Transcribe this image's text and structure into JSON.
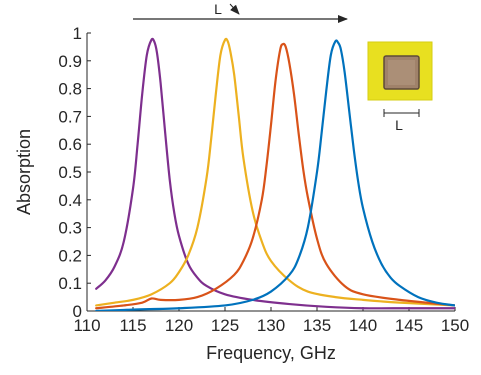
{
  "chart_data": {
    "type": "line",
    "xlabel": "Frequency, GHz",
    "ylabel": "Absorption",
    "xlim": [
      110,
      150
    ],
    "ylim": [
      0,
      1
    ],
    "x_ticks": [
      110,
      115,
      120,
      125,
      130,
      135,
      140,
      145,
      150
    ],
    "y_ticks": [
      0,
      0.1,
      0.2,
      0.3,
      0.4,
      0.5,
      0.6,
      0.7,
      0.8,
      0.9,
      1
    ],
    "y_tick_labels": [
      "0",
      "0.1",
      "0.2",
      "0.3",
      "0.4",
      "0.5",
      "0.6",
      "0.7",
      "0.8",
      "0.9",
      "1"
    ],
    "grid": false,
    "legend": "none",
    "series": [
      {
        "color": "#7E2F8E",
        "x": [
          111,
          112,
          113,
          114,
          115,
          115.5,
          116,
          116.5,
          117,
          117.3,
          117.6,
          118,
          118.5,
          119,
          119.5,
          120,
          121,
          122,
          123,
          125,
          128,
          132,
          136,
          140,
          145,
          150
        ],
        "y": [
          0.08,
          0.11,
          0.16,
          0.25,
          0.44,
          0.6,
          0.78,
          0.92,
          0.975,
          0.97,
          0.93,
          0.82,
          0.64,
          0.47,
          0.35,
          0.27,
          0.17,
          0.12,
          0.09,
          0.06,
          0.04,
          0.025,
          0.015,
          0.01,
          0.01,
          0.01
        ]
      },
      {
        "color": "#EDB120",
        "x": [
          111,
          113,
          115,
          117,
          119,
          120,
          121,
          122,
          123,
          123.5,
          124,
          124.5,
          125,
          125.3,
          125.6,
          126,
          126.5,
          127,
          128,
          129,
          130,
          132,
          134,
          137,
          140,
          144,
          150
        ],
        "y": [
          0.02,
          0.03,
          0.04,
          0.06,
          0.1,
          0.14,
          0.2,
          0.3,
          0.48,
          0.62,
          0.78,
          0.92,
          0.975,
          0.97,
          0.93,
          0.85,
          0.7,
          0.55,
          0.36,
          0.25,
          0.18,
          0.11,
          0.07,
          0.05,
          0.04,
          0.03,
          0.02
        ]
      },
      {
        "color": "#D95319",
        "x": [
          111,
          114,
          116,
          117,
          118,
          120,
          122,
          124,
          126,
          127,
          128,
          129,
          129.5,
          130,
          130.5,
          131,
          131.3,
          131.6,
          132,
          132.5,
          133,
          133.5,
          134,
          135,
          136,
          138,
          140,
          144,
          150
        ],
        "y": [
          0.01,
          0.02,
          0.03,
          0.045,
          0.04,
          0.04,
          0.05,
          0.08,
          0.13,
          0.18,
          0.26,
          0.4,
          0.52,
          0.67,
          0.83,
          0.94,
          0.96,
          0.95,
          0.89,
          0.78,
          0.64,
          0.51,
          0.41,
          0.26,
          0.17,
          0.09,
          0.06,
          0.04,
          0.02
        ]
      },
      {
        "color": "#0072BD",
        "x": [
          111,
          115,
          120,
          125,
          128,
          130,
          132,
          133,
          134,
          135,
          135.5,
          136,
          136.5,
          137,
          137.3,
          137.6,
          138,
          138.5,
          139,
          139.5,
          140,
          141,
          142,
          143,
          144,
          146,
          148,
          150
        ],
        "y": [
          0.0,
          0.005,
          0.01,
          0.02,
          0.04,
          0.07,
          0.13,
          0.19,
          0.3,
          0.5,
          0.64,
          0.79,
          0.92,
          0.97,
          0.965,
          0.94,
          0.86,
          0.72,
          0.58,
          0.46,
          0.37,
          0.25,
          0.17,
          0.12,
          0.09,
          0.05,
          0.03,
          0.02
        ]
      }
    ],
    "annotation_arrow_label": "L",
    "inset_dimension_label": "L"
  },
  "colors": {
    "axis": "#262626",
    "inset_substrate": "#E8E020",
    "inset_patch": "#A0826A"
  }
}
